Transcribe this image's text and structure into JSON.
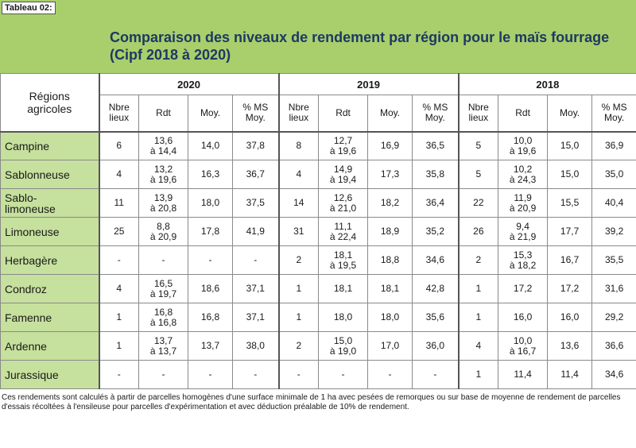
{
  "tag": "Tableau 02:",
  "title": {
    "line1": "Comparaison des niveaux de rendement par région pour le maïs fourrage",
    "line2": "(Cipf 2018 à 2020)"
  },
  "region_header": {
    "line1": "Régions",
    "line2": "agricoles"
  },
  "years": [
    "2020",
    "2019",
    "2018"
  ],
  "subheaders": [
    {
      "line1": "Nbre",
      "line2": "lieux"
    },
    {
      "line1": "Rdt",
      "line2": ""
    },
    {
      "line1": "Moy.",
      "line2": ""
    },
    {
      "line1": "% MS",
      "line2": "Moy."
    }
  ],
  "rows": [
    {
      "region": [
        "Campine"
      ],
      "cells": [
        [
          "6"
        ],
        [
          "13,6",
          "à 14,4"
        ],
        [
          "14,0"
        ],
        [
          "37,8"
        ],
        [
          "8"
        ],
        [
          "12,7",
          "à 19,6"
        ],
        [
          "16,9"
        ],
        [
          "36,5"
        ],
        [
          "5"
        ],
        [
          "10,0",
          "à 19,6"
        ],
        [
          "15,0"
        ],
        [
          "36,9"
        ]
      ]
    },
    {
      "region": [
        "Sablonneuse"
      ],
      "cells": [
        [
          "4"
        ],
        [
          "13,2",
          "à 19,6"
        ],
        [
          "16,3"
        ],
        [
          "36,7"
        ],
        [
          "4"
        ],
        [
          "14,9",
          "à 19,4"
        ],
        [
          "17,3"
        ],
        [
          "35,8"
        ],
        [
          "5"
        ],
        [
          "10,2",
          "à 24,3"
        ],
        [
          "15,0"
        ],
        [
          "35,0"
        ]
      ]
    },
    {
      "region": [
        "Sablo-",
        "limoneuse"
      ],
      "cells": [
        [
          "11"
        ],
        [
          "13,9",
          "à 20,8"
        ],
        [
          "18,0"
        ],
        [
          "37,5"
        ],
        [
          "14"
        ],
        [
          "12,6",
          "à 21,0"
        ],
        [
          "18,2"
        ],
        [
          "36,4"
        ],
        [
          "22"
        ],
        [
          "11,9",
          "à 20,9"
        ],
        [
          "15,5"
        ],
        [
          "40,4"
        ]
      ]
    },
    {
      "region": [
        "Limoneuse"
      ],
      "cells": [
        [
          "25"
        ],
        [
          "8,8",
          "à 20,9"
        ],
        [
          "17,8"
        ],
        [
          "41,9"
        ],
        [
          "31"
        ],
        [
          "11,1",
          "à 22,4"
        ],
        [
          "18,9"
        ],
        [
          "35,2"
        ],
        [
          "26"
        ],
        [
          "9,4",
          "à 21,9"
        ],
        [
          "17,7"
        ],
        [
          "39,2"
        ]
      ]
    },
    {
      "region": [
        "Herbagère"
      ],
      "cells": [
        [
          "-"
        ],
        [
          "-"
        ],
        [
          "-"
        ],
        [
          "-"
        ],
        [
          "2"
        ],
        [
          "18,1",
          "à 19,5"
        ],
        [
          "18,8"
        ],
        [
          "34,6"
        ],
        [
          "2"
        ],
        [
          "15,3",
          "à 18,2"
        ],
        [
          "16,7"
        ],
        [
          "35,5"
        ]
      ]
    },
    {
      "region": [
        "Condroz"
      ],
      "cells": [
        [
          "4"
        ],
        [
          "16,5",
          "à 19,7"
        ],
        [
          "18,6"
        ],
        [
          "37,1"
        ],
        [
          "1"
        ],
        [
          "18,1"
        ],
        [
          "18,1"
        ],
        [
          "42,8"
        ],
        [
          "1"
        ],
        [
          "17,2"
        ],
        [
          "17,2"
        ],
        [
          "31,6"
        ]
      ]
    },
    {
      "region": [
        "Famenne"
      ],
      "cells": [
        [
          "1"
        ],
        [
          "16,8",
          "à 16,8"
        ],
        [
          "16,8"
        ],
        [
          "37,1"
        ],
        [
          "1"
        ],
        [
          "18,0"
        ],
        [
          "18,0"
        ],
        [
          "35,6"
        ],
        [
          "1"
        ],
        [
          "16,0"
        ],
        [
          "16,0"
        ],
        [
          "29,2"
        ]
      ]
    },
    {
      "region": [
        "Ardenne"
      ],
      "cells": [
        [
          "1"
        ],
        [
          "13,7",
          "à 13,7"
        ],
        [
          "13,7"
        ],
        [
          "38,0"
        ],
        [
          "2"
        ],
        [
          "15,0",
          "à 19,0"
        ],
        [
          "17,0"
        ],
        [
          "36,0"
        ],
        [
          "4"
        ],
        [
          "10,0",
          "à 16,7"
        ],
        [
          "13,6"
        ],
        [
          "36,6"
        ]
      ]
    },
    {
      "region": [
        "Jurassique"
      ],
      "cells": [
        [
          "-"
        ],
        [
          "-"
        ],
        [
          "-"
        ],
        [
          "-"
        ],
        [
          "-"
        ],
        [
          "-"
        ],
        [
          "-"
        ],
        [
          "-"
        ],
        [
          "1"
        ],
        [
          "11,4"
        ],
        [
          "11,4"
        ],
        [
          "34,6"
        ]
      ]
    }
  ],
  "footnote": "Ces rendements sont calculés à partir de parcelles homogènes d'une surface minimale de 1 ha avec pesées de remorques ou sur base de moyenne de rendement de parcelles d'essais récoltées à l'ensileuse pour parcelles d'expérimentation et avec déduction préalable de 10% de rendement."
}
